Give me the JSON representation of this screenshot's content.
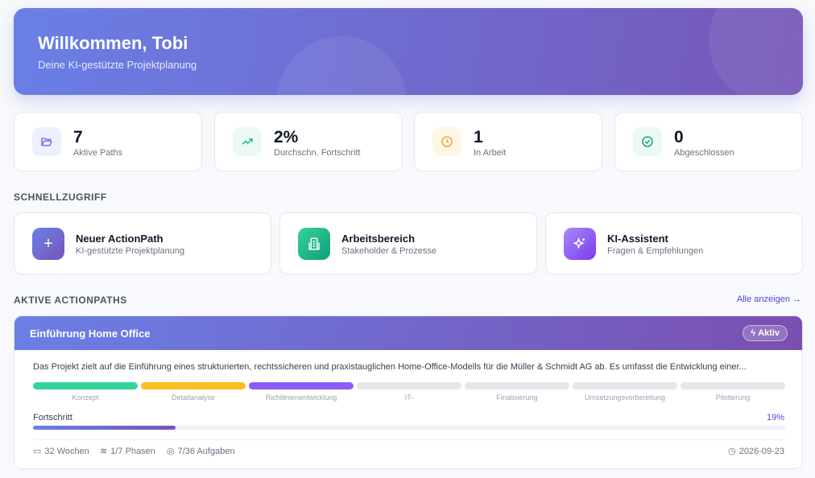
{
  "hero": {
    "title": "Willkommen, Tobi",
    "subtitle": "Deine KI-gestützte Projektplanung"
  },
  "stats": [
    {
      "value": "7",
      "label": "Aktive Paths",
      "icon": "folder-icon",
      "color": "#6366f1"
    },
    {
      "value": "2%",
      "label": "Durchschn. Fortschritt",
      "icon": "trending-up-icon",
      "color": "#10b981"
    },
    {
      "value": "1",
      "label": "In Arbeit",
      "icon": "clock-icon",
      "color": "#f59e0b"
    },
    {
      "value": "0",
      "label": "Abgeschlossen",
      "icon": "check-circle-icon",
      "color": "#10b981"
    }
  ],
  "quick": {
    "heading": "SCHNELLZUGRIFF",
    "items": [
      {
        "title": "Neuer ActionPath",
        "subtitle": "KI-gestützte Projektplanung",
        "icon": "plus-icon"
      },
      {
        "title": "Arbeitsbereich",
        "subtitle": "Stakeholder & Prozesse",
        "icon": "building-icon"
      },
      {
        "title": "KI-Assistent",
        "subtitle": "Fragen & Empfehlungen",
        "icon": "sparkles-icon"
      }
    ]
  },
  "active": {
    "heading": "AKTIVE ACTIONPATHS",
    "show_all": "Alle anzeigen →"
  },
  "card": {
    "title": "Einführung Home Office",
    "badge": "Aktiv",
    "description": "Das Projekt zielt auf die Einführung eines strukturierten, rechtssicheren und praxistauglichen Home-Office-Modells für die Müller & Schmidt AG ab. Es umfasst die Entwicklung einer...",
    "phases": [
      {
        "name": "Konzept",
        "color": "#34d399"
      },
      {
        "name": "Detailanalyse",
        "color": "#fbbf24"
      },
      {
        "name": "Richtlinienentwicklung",
        "color": "#8b5cf6"
      },
      {
        "name": "IT-",
        "color": "#e5e7eb"
      },
      {
        "name": "Finalisierung",
        "color": "#e5e7eb"
      },
      {
        "name": "Umsetzungsvorbereitung",
        "color": "#e5e7eb"
      },
      {
        "name": "Pilotierung",
        "color": "#e5e7eb"
      }
    ],
    "progress_label": "Fortschritt",
    "progress_text": "19%",
    "progress": 19,
    "weeks": "32 Wochen",
    "phases_count": "1/7 Phasen",
    "tasks": "7/36 Aufgaben",
    "date": "2026-09-23"
  }
}
